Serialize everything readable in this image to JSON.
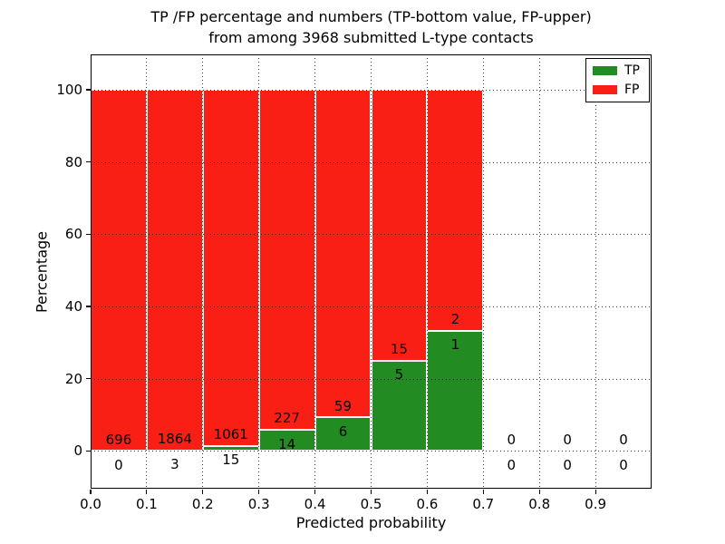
{
  "figure": {
    "title_line1": "TP /FP percentage and numbers (TP-bottom value, FP-upper)",
    "title_line2": "from among 3968 submitted L-type contacts"
  },
  "chart_data": {
    "type": "bar",
    "stacked": true,
    "units": "percent-of-bin",
    "title": "TP /FP percentage and numbers (TP-bottom value, FP-upper) from among 3968 submitted L-type contacts",
    "xlabel": "Predicted probability",
    "ylabel": "Percentage",
    "xlim": [
      0.0,
      1.0
    ],
    "ylim_display": [
      -10.5,
      110
    ],
    "xticks": [
      0.0,
      0.1,
      0.2,
      0.3,
      0.4,
      0.5,
      0.6,
      0.7,
      0.8,
      0.9
    ],
    "yticks": [
      0,
      20,
      40,
      60,
      80,
      100
    ],
    "grid": "dotted",
    "total_submitted": 3968,
    "bin_width": 0.1,
    "bin_starts": [
      0.0,
      0.1,
      0.2,
      0.3,
      0.4,
      0.5,
      0.6,
      0.7,
      0.8,
      0.9
    ],
    "series": [
      {
        "name": "TP",
        "color": "#228b22",
        "counts": [
          0,
          3,
          15,
          14,
          6,
          5,
          1,
          0,
          0,
          0
        ]
      },
      {
        "name": "FP",
        "color": "#fa1f15",
        "counts": [
          696,
          1864,
          1061,
          227,
          59,
          15,
          2,
          0,
          0,
          0
        ]
      }
    ],
    "bar_percentages_tp": [
      0,
      0.16,
      1.39,
      5.81,
      9.23,
      25.0,
      33.33,
      0,
      0,
      0
    ],
    "bar_percentages_total": [
      100,
      100,
      100,
      100,
      100,
      100,
      100,
      0,
      0,
      0
    ],
    "legend": {
      "position": "upper-right",
      "entries": [
        "TP",
        "FP"
      ]
    }
  }
}
